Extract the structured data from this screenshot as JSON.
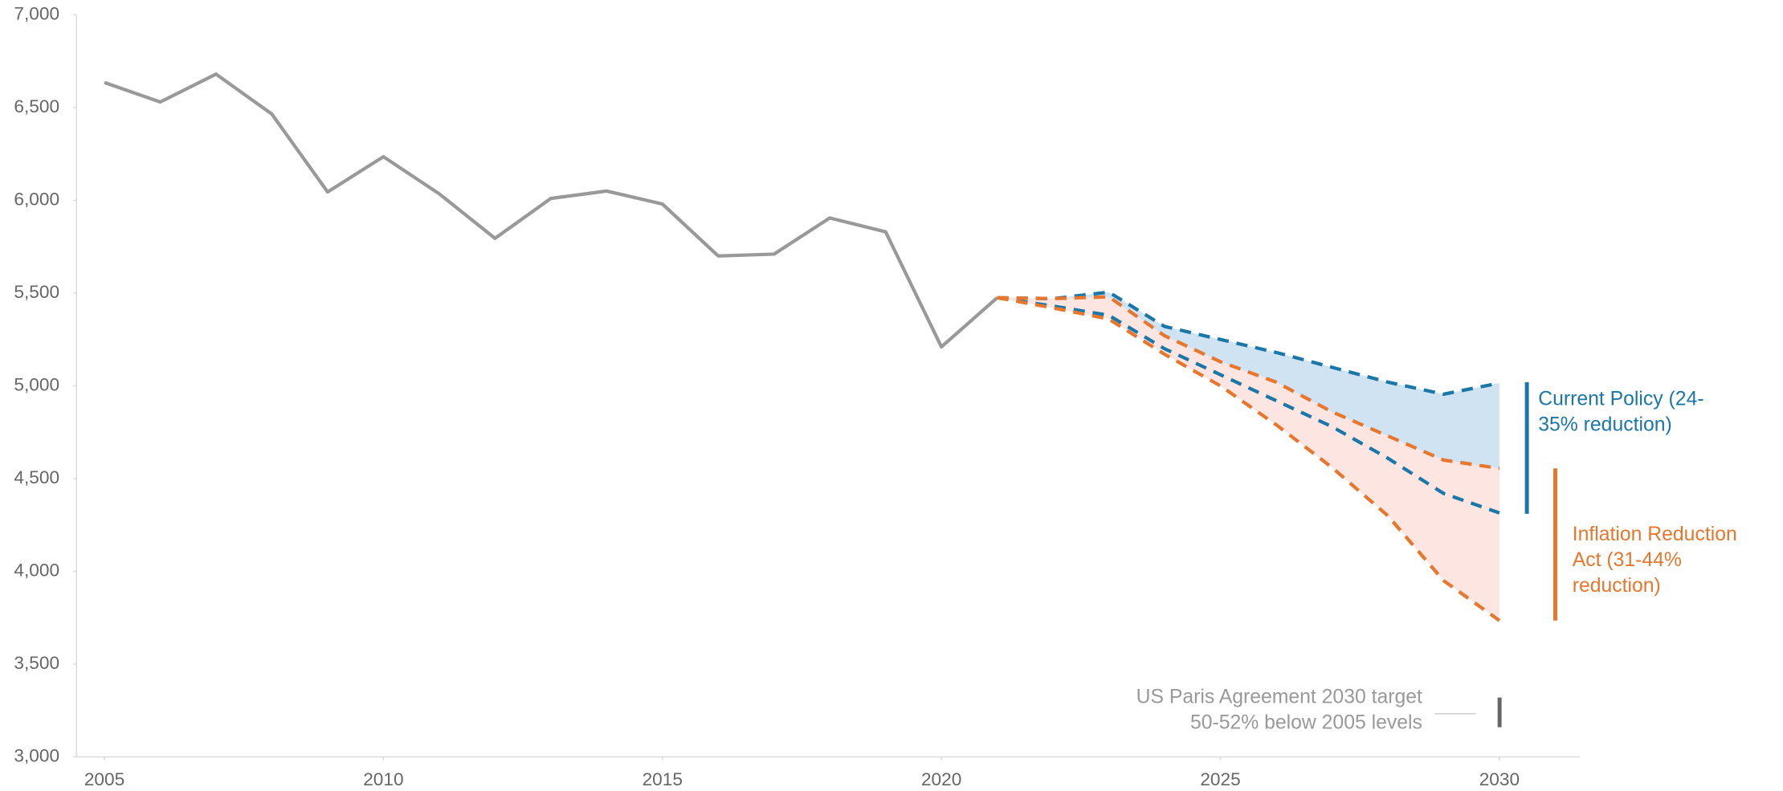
{
  "chart_data": {
    "type": "line",
    "xlim": [
      2004.5,
      2031.45
    ],
    "ylim": [
      3000,
      7000
    ],
    "xticks": [
      2005,
      2010,
      2015,
      2020,
      2025,
      2030
    ],
    "yticks": [
      {
        "value": 3000,
        "label": "3,000"
      },
      {
        "value": 3500,
        "label": "3,500"
      },
      {
        "value": 4000,
        "label": "4,000"
      },
      {
        "value": 4500,
        "label": "4,500"
      },
      {
        "value": 5000,
        "label": "5,000"
      },
      {
        "value": 5500,
        "label": "5,500"
      },
      {
        "value": 6000,
        "label": "6,000"
      },
      {
        "value": 6500,
        "label": "6,500"
      },
      {
        "value": 7000,
        "label": "7,000"
      }
    ],
    "series": [
      {
        "color": "#999999",
        "dashed": false,
        "x": [
          2005,
          2006,
          2007,
          2008,
          2009,
          2010,
          2011,
          2012,
          2013,
          2014,
          2015,
          2016,
          2017,
          2018,
          2019,
          2020,
          2021
        ],
        "values": [
          6635,
          6530,
          6680,
          6465,
          6045,
          6235,
          6035,
          5795,
          6010,
          6050,
          5980,
          5700,
          5710,
          5905,
          5830,
          5210,
          5475
        ]
      },
      {
        "color": "#1a77a8",
        "dashed": true,
        "fill_to": 2,
        "fill_color": "#cfe3f2",
        "x": [
          2021,
          2022,
          2023,
          2024,
          2025,
          2026,
          2027,
          2028,
          2029,
          2030
        ],
        "values": [
          5475,
          5470,
          5505,
          5320,
          5250,
          5180,
          5100,
          5020,
          4955,
          5015
        ]
      },
      {
        "color": "#1a77a8",
        "dashed": true,
        "x": [
          2021,
          2022,
          2023,
          2024,
          2025,
          2026,
          2027,
          2028,
          2029,
          2030
        ],
        "values": [
          5475,
          5430,
          5380,
          5200,
          5060,
          4920,
          4780,
          4610,
          4420,
          4315
        ]
      },
      {
        "color": "#e8762d",
        "dashed": true,
        "fill_to": 4,
        "fill_color": "#fde6e2",
        "x": [
          2021,
          2022,
          2023,
          2024,
          2025,
          2026,
          2027,
          2028,
          2029,
          2030
        ],
        "values": [
          5475,
          5470,
          5480,
          5270,
          5130,
          5020,
          4860,
          4730,
          4600,
          4555
        ]
      },
      {
        "color": "#e8762d",
        "dashed": true,
        "x": [
          2021,
          2022,
          2023,
          2024,
          2025,
          2026,
          2027,
          2028,
          2029,
          2030
        ],
        "values": [
          5475,
          5420,
          5360,
          5170,
          5000,
          4790,
          4560,
          4300,
          3950,
          3735
        ]
      }
    ],
    "annotations": [
      {
        "lines": [
          "Current Policy (24-",
          "35% reduction)"
        ],
        "color": "#1a77a8",
        "range": [
          5020,
          4310
        ]
      },
      {
        "lines": [
          "Inflation Reduction",
          "Act (31-44%",
          "reduction)"
        ],
        "color": "#e8762d",
        "range": [
          4555,
          3735
        ]
      },
      {
        "lines": [
          "US Paris Agreement 2030 target",
          "50-52% below 2005 levels"
        ],
        "color": "#999999",
        "bar_color": "#666666",
        "range": [
          3320,
          3160
        ]
      }
    ]
  }
}
